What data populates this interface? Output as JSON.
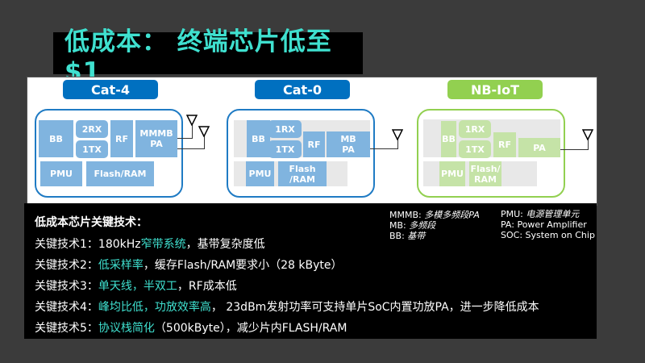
{
  "title": "低成本： 终端芯片低至$1",
  "diagrams": [
    {
      "label": "Cat-4",
      "color": "#0070c0",
      "blocks": {
        "bb": "BB",
        "rx": "2RX",
        "tx": "1TX",
        "rf": "RF",
        "pa": "MMMB PA",
        "pmu": "PMU",
        "mem": "Flash/RAM"
      }
    },
    {
      "label": "Cat-0",
      "color": "#0070c0",
      "blocks": {
        "bb": "BB",
        "rx": "1RX",
        "tx": "1TX",
        "rf": "RF",
        "pa": "MB PA",
        "pmu": "PMU",
        "mem": "Flash /RAM"
      }
    },
    {
      "label": "NB-IoT",
      "color": "#92d050",
      "blocks": {
        "bb": "BB",
        "rx": "1RX",
        "tx": "1TX",
        "rf": "RF",
        "pa": "PA",
        "pmu": "PMU",
        "mem": "Flash/ RAM"
      }
    }
  ],
  "legend": {
    "left": [
      {
        "k": "MMMB: ",
        "v": "多模多频段PA"
      },
      {
        "k": "MB: ",
        "v": "多频段"
      },
      {
        "k": "BB: ",
        "v": "基带"
      }
    ],
    "right": [
      {
        "k": "PMU: ",
        "v": "电源管理单元"
      },
      {
        "k": "PA: Power Amplifier",
        "v": ""
      },
      {
        "k": "SOC: System on Chip",
        "v": ""
      }
    ]
  },
  "notes": {
    "heading": "低成本芯片关键技术：",
    "items": [
      {
        "prefix": "关键技术1：",
        "pre": "180kHz",
        "hl": "窄带系统",
        "rest": "，基带复杂度低"
      },
      {
        "prefix": "关键技术2：",
        "pre": "",
        "hl": "低采样率",
        "rest": "，缓存Flash/RAM要求小（28 kByte）"
      },
      {
        "prefix": "关键技术3：",
        "pre": "",
        "hl": "单天线，半双工",
        "rest": "，RF成本低"
      },
      {
        "prefix": "关键技术4：",
        "pre": "",
        "hl": "峰均比低，功放效率高",
        "rest": "， 23dBm发射功率可支持单片SoC内置功放PA，进一步降低成本"
      },
      {
        "prefix": "关键技术5：",
        "pre": "",
        "hl": "协议栈简化",
        "rest": "（500kByte），减少片内FLASH/RAM"
      }
    ]
  }
}
